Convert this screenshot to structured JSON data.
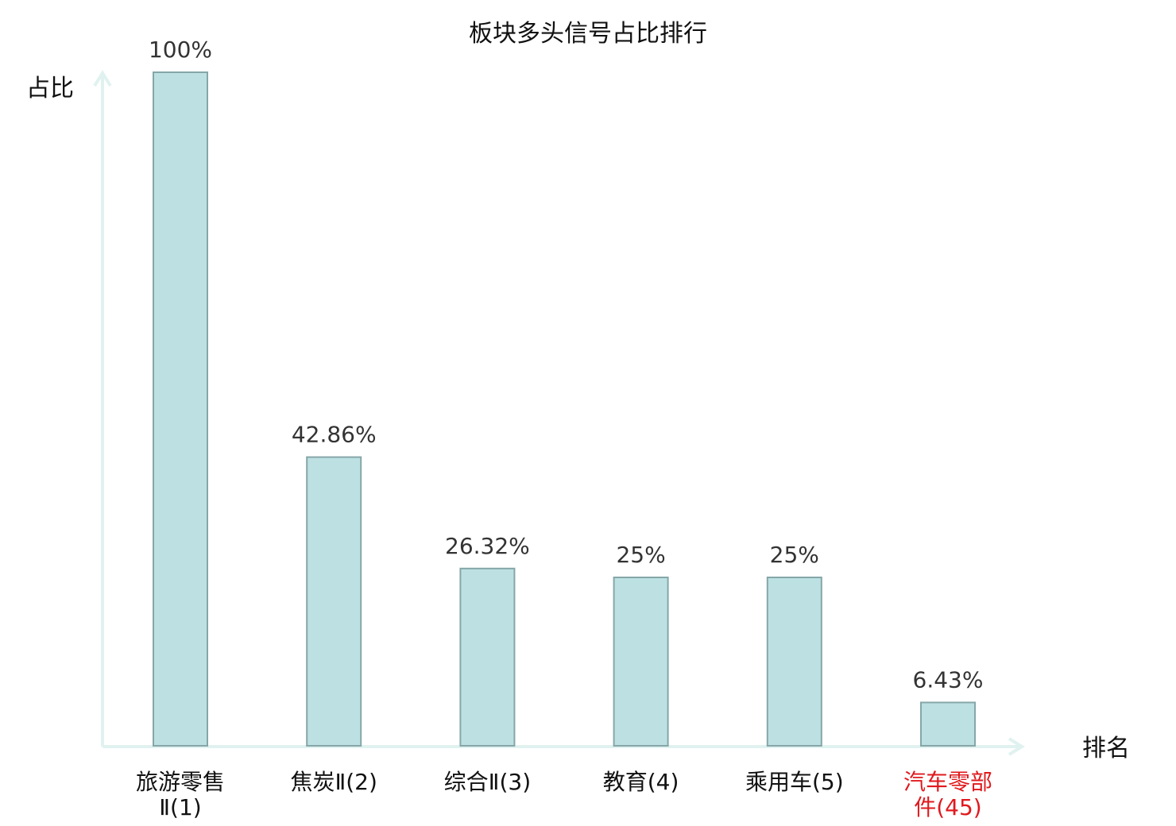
{
  "chart_data": {
    "type": "bar",
    "title": "板块多头信号占比排行",
    "xlabel": "排名",
    "ylabel": "占比",
    "ylim": [
      0,
      100
    ],
    "grid": false,
    "categories": [
      {
        "name": "旅游零售Ⅱ",
        "rank": "1",
        "highlight": false
      },
      {
        "name": "焦炭Ⅱ",
        "rank": "2",
        "highlight": false
      },
      {
        "name": "综合Ⅱ",
        "rank": "3",
        "highlight": false
      },
      {
        "name": "教育",
        "rank": "4",
        "highlight": false
      },
      {
        "name": "乘用车",
        "rank": "5",
        "highlight": false
      },
      {
        "name": "汽车零部件",
        "rank": "45",
        "highlight": true
      }
    ],
    "values": [
      100,
      42.86,
      26.32,
      25,
      25,
      6.43
    ],
    "value_labels": [
      "100%",
      "42.86%",
      "26.32%",
      "25%",
      "25%",
      "6.43%"
    ]
  },
  "colors": {
    "bar_fill": "#bde1e3",
    "bar_stroke": "#86a6a8",
    "axis": "#e0f2ef",
    "highlight_text": "#e0191d",
    "text": "#111111"
  }
}
